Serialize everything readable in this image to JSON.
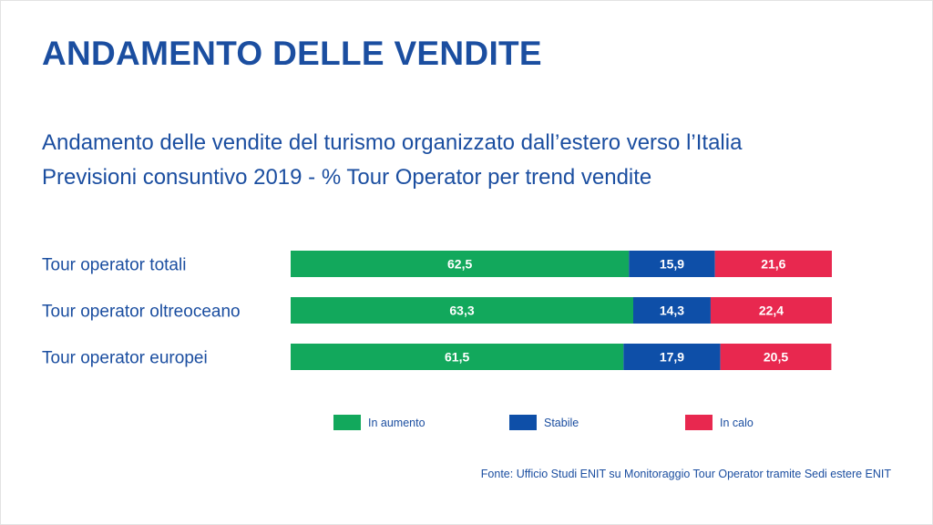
{
  "header": {
    "title": "ANDAMENTO DELLE VENDITE",
    "subtitle_line1": "Andamento delle vendite del turismo organizzato dall’estero verso l’Italia",
    "subtitle_line2": "Previsioni consuntivo 2019 - % Tour Operator per trend vendite"
  },
  "footer": {
    "source": "Fonte: Ufficio Studi ENIT su Monitoraggio Tour Operator tramite Sedi estere ENIT"
  },
  "chart_data": {
    "type": "bar",
    "orientation": "horizontal",
    "stacked": true,
    "title": "",
    "xlabel": "",
    "ylabel": "",
    "xlim": [
      0,
      100
    ],
    "grid": false,
    "legend_position": "bottom",
    "categories": [
      "Tour operator totali",
      "Tour operator oltreoceano",
      "Tour operator europei"
    ],
    "series": [
      {
        "name": "In aumento",
        "color": "#12a85c",
        "values": [
          62.5,
          63.3,
          61.5
        ],
        "labels": [
          "62,5",
          "63,3",
          "61,5"
        ]
      },
      {
        "name": "Stabile",
        "color": "#0e4fa8",
        "values": [
          15.9,
          14.3,
          17.9
        ],
        "labels": [
          "15,9",
          "14,3",
          "17,9"
        ]
      },
      {
        "name": "In calo",
        "color": "#e8284f",
        "values": [
          21.6,
          22.4,
          20.5
        ],
        "labels": [
          "21,6",
          "22,4",
          "20,5"
        ]
      }
    ]
  }
}
